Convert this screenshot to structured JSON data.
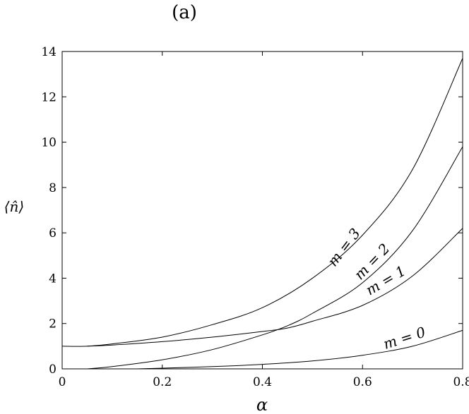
{
  "chart_data": {
    "type": "line",
    "panel_label": "(a)",
    "xlabel": "α",
    "ylabel": "⟨n̂⟩",
    "xlim": [
      0,
      0.8
    ],
    "ylim": [
      0,
      14
    ],
    "x_ticks": [
      0,
      0.2,
      0.4,
      0.6,
      0.8
    ],
    "x_tick_labels": [
      "0",
      "0.2",
      "0.4",
      "0.6",
      "0.8"
    ],
    "y_ticks": [
      0,
      2,
      4,
      6,
      8,
      10,
      12,
      14
    ],
    "y_tick_labels": [
      "0",
      "2",
      "4",
      "6",
      "8",
      "10",
      "12",
      "14"
    ],
    "grid": false,
    "series": [
      {
        "name": "m = 0",
        "x": [
          0.15,
          0.2,
          0.3,
          0.4,
          0.5,
          0.6,
          0.7,
          0.8
        ],
        "y": [
          0.0,
          0.03,
          0.1,
          0.2,
          0.35,
          0.6,
          1.0,
          1.7
        ]
      },
      {
        "name": "m = 1",
        "x": [
          0.05,
          0.1,
          0.2,
          0.3,
          0.4,
          0.45,
          0.5,
          0.6,
          0.7,
          0.8
        ],
        "y": [
          1.0,
          1.05,
          1.2,
          1.4,
          1.65,
          1.8,
          2.1,
          2.8,
          4.1,
          6.2
        ]
      },
      {
        "name": "m = 2",
        "x": [
          0.05,
          0.1,
          0.2,
          0.3,
          0.4,
          0.45,
          0.5,
          0.6,
          0.7,
          0.8
        ],
        "y": [
          0.0,
          0.1,
          0.4,
          0.85,
          1.5,
          1.9,
          2.45,
          3.8,
          6.1,
          9.8
        ]
      },
      {
        "name": "m = 3",
        "x": [
          0.0,
          0.05,
          0.1,
          0.2,
          0.3,
          0.4,
          0.5,
          0.6,
          0.7,
          0.8
        ],
        "y": [
          1.0,
          1.0,
          1.1,
          1.4,
          1.95,
          2.7,
          4.0,
          5.9,
          8.8,
          13.7
        ]
      }
    ]
  }
}
